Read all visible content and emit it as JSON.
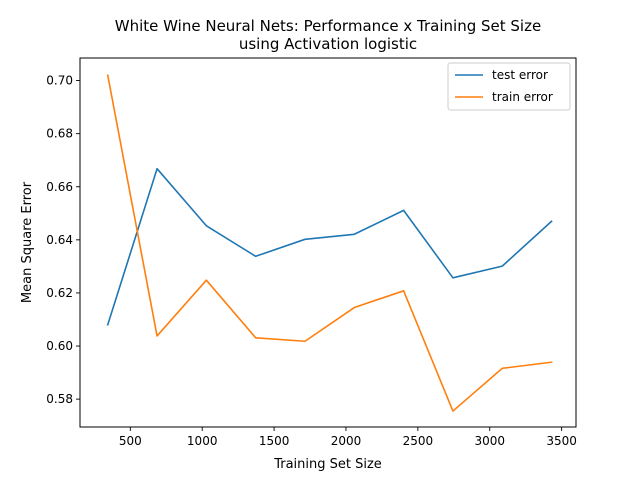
{
  "chart_data": {
    "type": "line",
    "title": "White Wine Neural Nets: Performance x Training Set Size",
    "subtitle": "using Activation logistic",
    "xlabel": "Training Set Size",
    "ylabel": "Mean Square Error",
    "xlim": [
      150,
      3600
    ],
    "ylim": [
      0.5695,
      0.7085
    ],
    "xticks": [
      500,
      1000,
      1500,
      2000,
      2500,
      3000,
      3500
    ],
    "xtick_labels": [
      "500",
      "1000",
      "1500",
      "2000",
      "2500",
      "3000",
      "3500"
    ],
    "yticks": [
      0.58,
      0.6,
      0.62,
      0.64,
      0.66,
      0.68,
      0.7
    ],
    "ytick_labels": [
      "0.58",
      "0.60",
      "0.62",
      "0.64",
      "0.66",
      "0.68",
      "0.70"
    ],
    "grid": false,
    "legend_position": "top-right",
    "x": [
      343,
      686,
      1029,
      1372,
      1715,
      2058,
      2401,
      2744,
      3087,
      3430
    ],
    "series": [
      {
        "name": "test error",
        "color": "#1f77b4",
        "values": [
          0.608,
          0.6668,
          0.6453,
          0.6338,
          0.6402,
          0.6421,
          0.6511,
          0.6257,
          0.6301,
          0.647
        ]
      },
      {
        "name": "train error",
        "color": "#ff7f0e",
        "values": [
          0.702,
          0.6038,
          0.6248,
          0.6031,
          0.6018,
          0.6145,
          0.6208,
          0.5755,
          0.5916,
          0.5939
        ]
      }
    ]
  }
}
